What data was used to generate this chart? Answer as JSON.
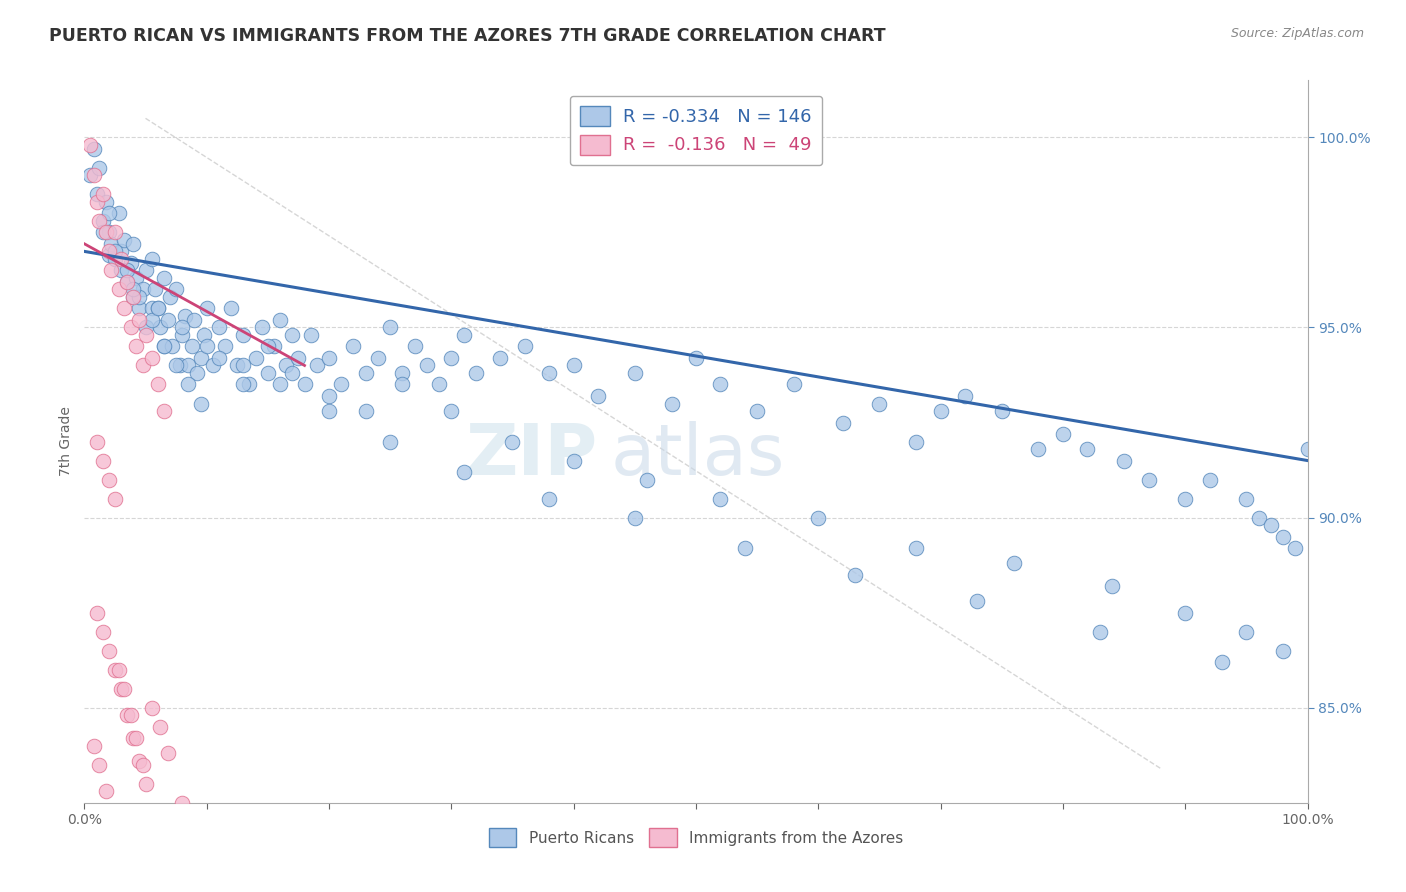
{
  "title": "PUERTO RICAN VS IMMIGRANTS FROM THE AZORES 7TH GRADE CORRELATION CHART",
  "source": "Source: ZipAtlas.com",
  "ylabel": "7th Grade",
  "y_tick_labels": [
    "85.0%",
    "90.0%",
    "95.0%",
    "100.0%"
  ],
  "y_tick_values": [
    0.85,
    0.9,
    0.95,
    1.0
  ],
  "x_range": [
    0.0,
    1.0
  ],
  "y_range": [
    0.825,
    1.015
  ],
  "blue_R": -0.334,
  "blue_N": 146,
  "pink_R": -0.136,
  "pink_N": 49,
  "blue_color": "#adc8e8",
  "blue_edge": "#5588bb",
  "pink_color": "#f5bbd0",
  "pink_edge": "#e07090",
  "blue_line_color": "#3366aa",
  "pink_line_color": "#cc4477",
  "watermark_zip": "ZIP",
  "watermark_atlas": "atlas",
  "legend_label_blue": "Puerto Ricans",
  "legend_label_pink": "Immigrants from the Azores",
  "blue_scatter_x": [
    0.005,
    0.008,
    0.01,
    0.012,
    0.015,
    0.018,
    0.02,
    0.02,
    0.022,
    0.025,
    0.028,
    0.03,
    0.03,
    0.032,
    0.035,
    0.038,
    0.04,
    0.04,
    0.042,
    0.045,
    0.048,
    0.05,
    0.05,
    0.055,
    0.055,
    0.058,
    0.06,
    0.062,
    0.065,
    0.065,
    0.068,
    0.07,
    0.072,
    0.075,
    0.078,
    0.08,
    0.082,
    0.085,
    0.088,
    0.09,
    0.092,
    0.095,
    0.098,
    0.1,
    0.105,
    0.11,
    0.115,
    0.12,
    0.125,
    0.13,
    0.135,
    0.14,
    0.145,
    0.15,
    0.155,
    0.16,
    0.165,
    0.17,
    0.175,
    0.18,
    0.185,
    0.19,
    0.2,
    0.21,
    0.22,
    0.23,
    0.24,
    0.25,
    0.26,
    0.27,
    0.28,
    0.29,
    0.3,
    0.31,
    0.32,
    0.34,
    0.36,
    0.38,
    0.4,
    0.42,
    0.45,
    0.48,
    0.5,
    0.52,
    0.55,
    0.58,
    0.62,
    0.65,
    0.68,
    0.7,
    0.72,
    0.75,
    0.78,
    0.8,
    0.82,
    0.85,
    0.87,
    0.9,
    0.92,
    0.95,
    0.96,
    0.97,
    0.98,
    0.99,
    1.0,
    0.015,
    0.025,
    0.035,
    0.045,
    0.055,
    0.065,
    0.075,
    0.085,
    0.095,
    0.11,
    0.13,
    0.15,
    0.17,
    0.2,
    0.23,
    0.26,
    0.3,
    0.35,
    0.4,
    0.46,
    0.52,
    0.6,
    0.68,
    0.76,
    0.84,
    0.9,
    0.95,
    0.98,
    0.02,
    0.04,
    0.06,
    0.08,
    0.1,
    0.13,
    0.16,
    0.2,
    0.25,
    0.31,
    0.38,
    0.45,
    0.54,
    0.63,
    0.73,
    0.83,
    0.93
  ],
  "blue_scatter_y": [
    0.99,
    0.997,
    0.985,
    0.992,
    0.978,
    0.983,
    0.975,
    0.969,
    0.972,
    0.968,
    0.98,
    0.97,
    0.965,
    0.973,
    0.962,
    0.967,
    0.972,
    0.958,
    0.963,
    0.955,
    0.96,
    0.965,
    0.95,
    0.968,
    0.955,
    0.96,
    0.955,
    0.95,
    0.963,
    0.945,
    0.952,
    0.958,
    0.945,
    0.96,
    0.94,
    0.948,
    0.953,
    0.94,
    0.945,
    0.952,
    0.938,
    0.942,
    0.948,
    0.955,
    0.94,
    0.95,
    0.945,
    0.955,
    0.94,
    0.948,
    0.935,
    0.942,
    0.95,
    0.938,
    0.945,
    0.952,
    0.94,
    0.948,
    0.942,
    0.935,
    0.948,
    0.94,
    0.942,
    0.935,
    0.945,
    0.938,
    0.942,
    0.95,
    0.938,
    0.945,
    0.94,
    0.935,
    0.942,
    0.948,
    0.938,
    0.942,
    0.945,
    0.938,
    0.94,
    0.932,
    0.938,
    0.93,
    0.942,
    0.935,
    0.928,
    0.935,
    0.925,
    0.93,
    0.92,
    0.928,
    0.932,
    0.928,
    0.918,
    0.922,
    0.918,
    0.915,
    0.91,
    0.905,
    0.91,
    0.905,
    0.9,
    0.898,
    0.895,
    0.892,
    0.918,
    0.975,
    0.97,
    0.965,
    0.958,
    0.952,
    0.945,
    0.94,
    0.935,
    0.93,
    0.942,
    0.935,
    0.945,
    0.938,
    0.932,
    0.928,
    0.935,
    0.928,
    0.92,
    0.915,
    0.91,
    0.905,
    0.9,
    0.892,
    0.888,
    0.882,
    0.875,
    0.87,
    0.865,
    0.98,
    0.96,
    0.955,
    0.95,
    0.945,
    0.94,
    0.935,
    0.928,
    0.92,
    0.912,
    0.905,
    0.9,
    0.892,
    0.885,
    0.878,
    0.87,
    0.862
  ],
  "pink_scatter_x": [
    0.005,
    0.008,
    0.01,
    0.012,
    0.015,
    0.018,
    0.02,
    0.022,
    0.025,
    0.028,
    0.03,
    0.032,
    0.035,
    0.038,
    0.04,
    0.042,
    0.045,
    0.048,
    0.05,
    0.055,
    0.06,
    0.065,
    0.01,
    0.015,
    0.02,
    0.025,
    0.03,
    0.035,
    0.04,
    0.045,
    0.05,
    0.06,
    0.01,
    0.015,
    0.02,
    0.025,
    0.008,
    0.012,
    0.018,
    0.022,
    0.028,
    0.032,
    0.038,
    0.042,
    0.048,
    0.055,
    0.062,
    0.068,
    0.08
  ],
  "pink_scatter_y": [
    0.998,
    0.99,
    0.983,
    0.978,
    0.985,
    0.975,
    0.97,
    0.965,
    0.975,
    0.96,
    0.968,
    0.955,
    0.962,
    0.95,
    0.958,
    0.945,
    0.952,
    0.94,
    0.948,
    0.942,
    0.935,
    0.928,
    0.875,
    0.87,
    0.865,
    0.86,
    0.855,
    0.848,
    0.842,
    0.836,
    0.83,
    0.82,
    0.92,
    0.915,
    0.91,
    0.905,
    0.84,
    0.835,
    0.828,
    0.822,
    0.86,
    0.855,
    0.848,
    0.842,
    0.835,
    0.85,
    0.845,
    0.838,
    0.825
  ],
  "blue_trendline_x": [
    0.0,
    1.0
  ],
  "blue_trendline_y": [
    0.97,
    0.915
  ],
  "pink_trendline_x": [
    0.0,
    0.18
  ],
  "pink_trendline_y": [
    0.972,
    0.94
  ],
  "diag_line_x": [
    0.05,
    0.88
  ],
  "diag_line_y": [
    1.005,
    0.834
  ],
  "background_color": "#ffffff",
  "grid_color": "#cccccc",
  "title_color": "#333333",
  "right_axis_color": "#5588bb"
}
